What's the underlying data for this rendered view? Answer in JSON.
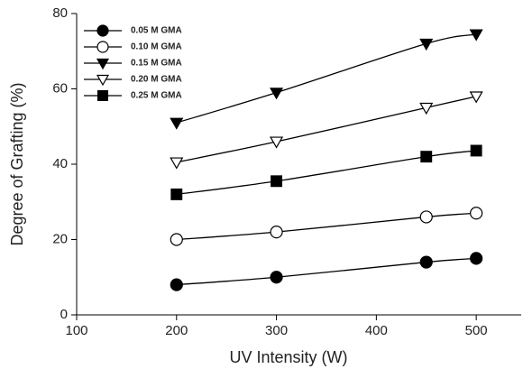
{
  "chart_data": {
    "type": "line",
    "x_label": "UV Intensity (W)",
    "y_label": "Degree of Grafting (%)",
    "x": [
      200,
      300,
      450,
      500
    ],
    "series": [
      {
        "name": "0.05 M GMA",
        "color": "#000000",
        "marker": "circle",
        "filled": true,
        "values": [
          8,
          10,
          14,
          15
        ]
      },
      {
        "name": "0.10 M GMA",
        "color": "#000000",
        "marker": "circle",
        "filled": false,
        "values": [
          20,
          22,
          26,
          27
        ]
      },
      {
        "name": "0.15 M GMA",
        "color": "#000000",
        "marker": "triangle-down",
        "filled": true,
        "values": [
          51,
          59,
          72,
          74.5
        ]
      },
      {
        "name": "0.20 M GMA",
        "color": "#000000",
        "marker": "triangle-down",
        "filled": false,
        "values": [
          40.5,
          46,
          55,
          58
        ]
      },
      {
        "name": "0.25 M GMA",
        "color": "#000000",
        "marker": "square",
        "filled": true,
        "values": [
          32,
          35.5,
          42,
          43.6
        ]
      }
    ],
    "xlim": [
      100,
      545
    ],
    "xticks": [
      100,
      200,
      300,
      400,
      500
    ],
    "ylim": [
      0,
      80
    ],
    "yticks": [
      0,
      20,
      40,
      60,
      80
    ],
    "legend": "top-left",
    "smooth": true,
    "grid": false
  }
}
